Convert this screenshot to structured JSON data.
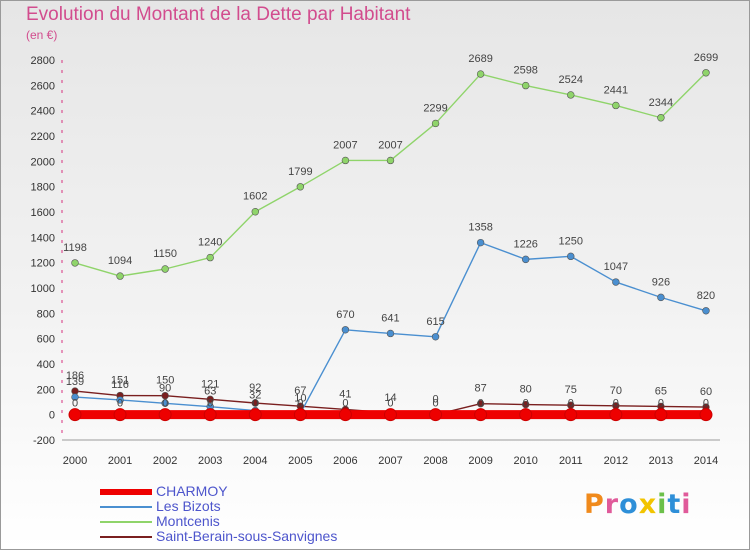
{
  "header": {
    "title": "Evolution du Montant de la Dette par Habitant",
    "subtitle": "(en €)"
  },
  "brand": {
    "logo": "Proxiti"
  },
  "chart_data": {
    "type": "line",
    "title": "Evolution du Montant de la Dette par Habitant",
    "ylabel": "(en €)",
    "xlabel": "",
    "x": [
      "2000",
      "2001",
      "2002",
      "2003",
      "2004",
      "2005",
      "2006",
      "2007",
      "2008",
      "2009",
      "2010",
      "2011",
      "2012",
      "2013",
      "2014"
    ],
    "yticks": [
      "-200",
      "0",
      "200",
      "400",
      "600",
      "800",
      "1000",
      "1200",
      "1400",
      "1600",
      "1800",
      "2000",
      "2200",
      "2400",
      "2600",
      "2800"
    ],
    "ylim": [
      -200,
      2800
    ],
    "grid": false,
    "legend_position": "bottom-left",
    "series": [
      {
        "name": "CHARMOY",
        "color": "#ee0000",
        "values": [
          0,
          0,
          0,
          0,
          0,
          0,
          0,
          0,
          0,
          0,
          0,
          0,
          0,
          0,
          0
        ],
        "labels": [
          "0",
          "0",
          "0",
          "0",
          "0",
          "0",
          "0",
          "0",
          "0",
          "0",
          "0",
          "0",
          "0",
          "0",
          "0"
        ]
      },
      {
        "name": "Les Bizots",
        "color": "#4a8fd0",
        "values": [
          139,
          116,
          90,
          63,
          32,
          10,
          670,
          641,
          615,
          1358,
          1226,
          1250,
          1047,
          926,
          820
        ],
        "labels": [
          "139",
          "116",
          "90",
          "63",
          "32",
          "10",
          "670",
          "641",
          "615",
          "1358",
          "1226",
          "1250",
          "1047",
          "926",
          "820"
        ]
      },
      {
        "name": "Montcenis",
        "color": "#8fd46a",
        "values": [
          1198,
          1094,
          1150,
          1240,
          1602,
          1799,
          2007,
          2007,
          2299,
          2689,
          2598,
          2524,
          2441,
          2344,
          2699
        ],
        "labels": [
          "1198",
          "1094",
          "1150",
          "1240",
          "1602",
          "1799",
          "2007",
          "2007",
          "2299",
          "2689",
          "2598",
          "2524",
          "2441",
          "2344",
          "2699"
        ]
      },
      {
        "name": "Saint-Berain-sous-Sanvignes",
        "color": "#7a1f1f",
        "values": [
          186,
          151,
          150,
          121,
          92,
          67,
          41,
          14,
          0,
          87,
          80,
          75,
          70,
          65,
          60
        ],
        "labels": [
          "186",
          "151",
          "150",
          "121",
          "92",
          "67",
          "41",
          "14",
          "0",
          "87",
          "80",
          "75",
          "70",
          "65",
          "60"
        ]
      }
    ]
  }
}
